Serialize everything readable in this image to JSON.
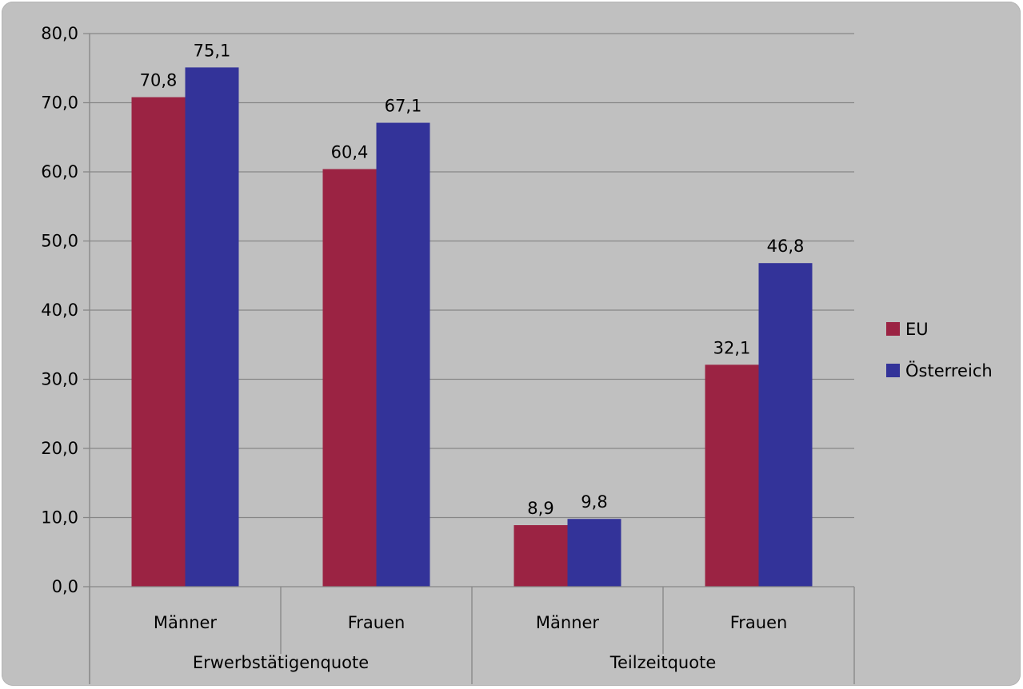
{
  "chart_data": {
    "type": "bar",
    "title": "",
    "xlabel": "",
    "ylabel": "",
    "ylim": [
      0,
      80
    ],
    "y_ticks": [
      "0,0",
      "10,0",
      "20,0",
      "30,0",
      "40,0",
      "50,0",
      "60,0",
      "70,0",
      "80,0"
    ],
    "grid": true,
    "legend_position": "right",
    "groups": [
      {
        "label": "Erwerbstätigenquote",
        "categories": [
          "Männer",
          "Frauen"
        ]
      },
      {
        "label": "Teilzeitquote",
        "categories": [
          "Männer",
          "Frauen"
        ]
      }
    ],
    "categories": [
      "Männer",
      "Frauen",
      "Männer",
      "Frauen"
    ],
    "series": [
      {
        "name": "EU",
        "color": "#9b2343",
        "values": [
          70.8,
          60.4,
          8.9,
          32.1
        ],
        "labels": [
          "70,8",
          "60,4",
          "8,9",
          "32,1"
        ]
      },
      {
        "name": "Österreich",
        "color": "#333399",
        "values": [
          75.1,
          67.1,
          9.8,
          46.8
        ],
        "labels": [
          "75,1",
          "67,1",
          "9,8",
          "46,8"
        ]
      }
    ]
  }
}
